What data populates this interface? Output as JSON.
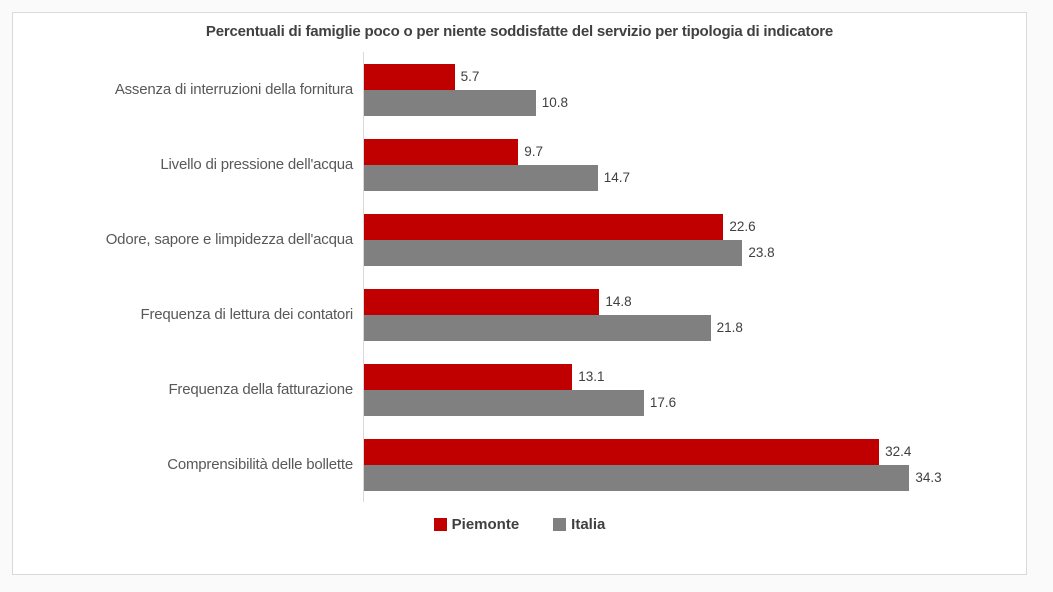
{
  "chart_data": {
    "type": "bar",
    "orientation": "horizontal",
    "title": "Percentuali di famiglie poco o per niente soddisfatte del servizio per tipologia di indicatore",
    "categories": [
      "Assenza di interruzioni della fornitura",
      "Livello di pressione dell'acqua",
      "Odore, sapore e limpidezza dell'acqua",
      "Frequenza di lettura dei contatori",
      "Frequenza della fatturazione",
      "Comprensibilità delle bollette"
    ],
    "series": [
      {
        "name": "Piemonte",
        "color": "#c00000",
        "values": [
          5.7,
          9.7,
          22.6,
          14.8,
          13.1,
          32.4
        ]
      },
      {
        "name": "Italia",
        "color": "#808080",
        "values": [
          10.8,
          14.7,
          23.8,
          21.8,
          17.6,
          34.3
        ]
      }
    ],
    "value_labels": true,
    "xlim": [
      0,
      40
    ],
    "grid": false,
    "legend_position": "bottom",
    "colors": {
      "title_text": "#404040",
      "category_text": "#595959",
      "value_text": "#404040",
      "axis_line": "#d9d9d9",
      "chart_border": "#d9d9d9",
      "chart_background": "#ffffff"
    }
  }
}
